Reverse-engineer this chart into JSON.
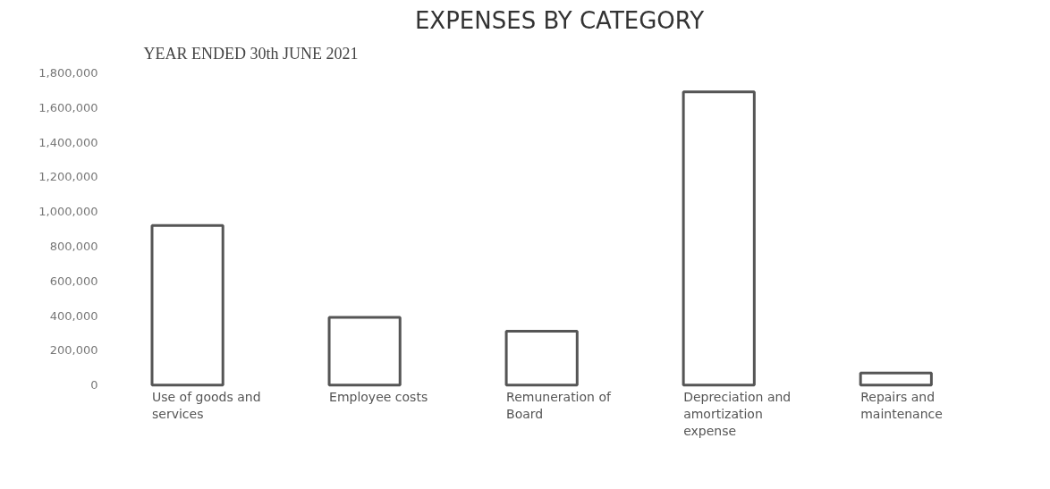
{
  "chart_data": {
    "type": "bar",
    "title": "EXPENSES BY CATEGORY",
    "annotations": [
      "YEAR ENDED 30th JUNE 2021"
    ],
    "categories": [
      "Use of goods and services",
      "Employee costs",
      "Remuneration of Board",
      "Depreciation and amortization expense",
      "Repairs and maintenance"
    ],
    "values": [
      920000,
      390000,
      310000,
      1690000,
      70000
    ],
    "color": "#555555",
    "ylim": [
      0,
      1800000
    ],
    "yticks": [
      {
        "value": 0,
        "label": "0"
      },
      {
        "value": 200000,
        "label": "200,000"
      },
      {
        "value": 400000,
        "label": "400,000"
      },
      {
        "value": 600000,
        "label": "600,000"
      },
      {
        "value": 800000,
        "label": "800,000"
      },
      {
        "value": 1000000,
        "label": "1,000,000"
      },
      {
        "value": 1200000,
        "label": "1,200,000"
      },
      {
        "value": 1400000,
        "label": "1,400,000"
      },
      {
        "value": 1600000,
        "label": "1,600,000"
      },
      {
        "value": 1800000,
        "label": "1,800,000"
      }
    ],
    "grid": false
  }
}
